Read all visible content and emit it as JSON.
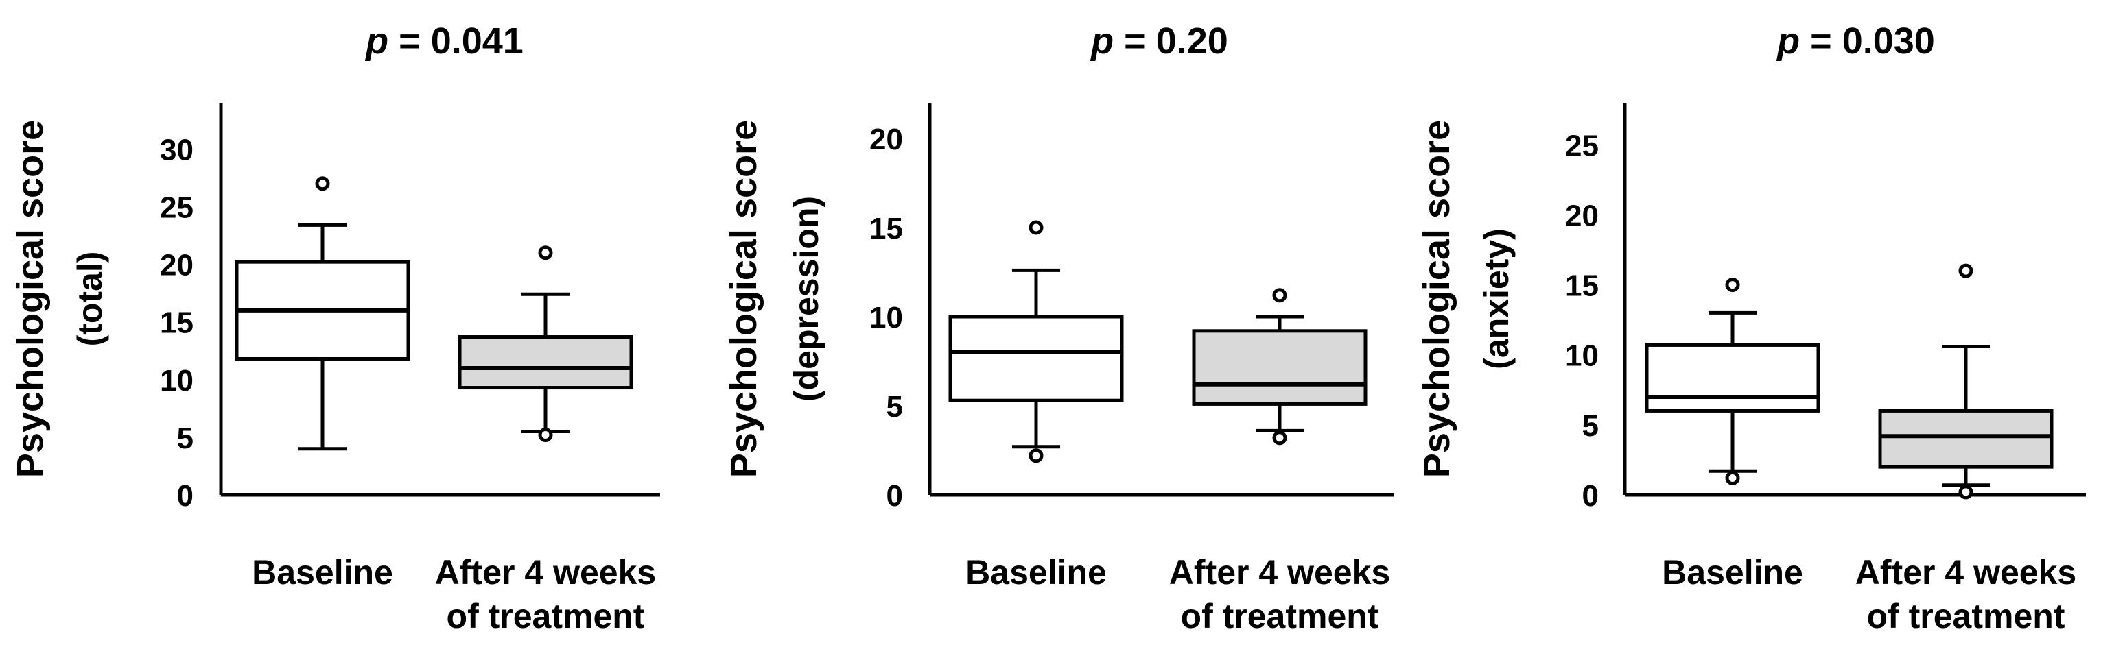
{
  "colors": {
    "axis": "#000000",
    "baseline_box": "#ffffff",
    "after_box": "#d9d9d9",
    "stroke": "#000000"
  },
  "chart_data": [
    {
      "type": "box",
      "p_prefix": "p",
      "p_value": " = 0.041",
      "ylabel_line1": "Psychological score",
      "ylabel_line2": "(total)",
      "yticks": [
        0,
        5,
        10,
        15,
        20,
        25,
        30
      ],
      "ylim": [
        0,
        34
      ],
      "categories": [
        "Baseline",
        "After 4 weeks|of treatment"
      ],
      "boxes": [
        {
          "whisker_low": 4,
          "q1": 11.8,
          "median": 16,
          "q3": 20.2,
          "whisker_high": 23.4,
          "outliers": [
            27
          ]
        },
        {
          "whisker_low": 5.5,
          "q1": 9.3,
          "median": 11,
          "q3": 13.7,
          "whisker_high": 17.4,
          "outliers": [
            5.2,
            21
          ]
        }
      ]
    },
    {
      "type": "box",
      "p_prefix": "p",
      "p_value": " = 0.20",
      "ylabel_line1": "Psychological score",
      "ylabel_line2": "(depression)",
      "yticks": [
        0,
        5,
        10,
        15,
        20
      ],
      "ylim": [
        0,
        22
      ],
      "categories": [
        "Baseline",
        "After 4 weeks|of treatment"
      ],
      "boxes": [
        {
          "whisker_low": 2.7,
          "q1": 5.3,
          "median": 8,
          "q3": 10,
          "whisker_high": 12.6,
          "outliers": [
            2.2,
            15
          ]
        },
        {
          "whisker_low": 3.6,
          "q1": 5.1,
          "median": 6.2,
          "q3": 9.2,
          "whisker_high": 10,
          "outliers": [
            3.2,
            11.2
          ]
        }
      ]
    },
    {
      "type": "box",
      "p_prefix": "p",
      "p_value": " = 0.030",
      "ylabel_line1": "Psychological score",
      "ylabel_line2": "(anxiety)",
      "yticks": [
        0,
        5,
        10,
        15,
        20,
        25
      ],
      "ylim": [
        0,
        28
      ],
      "categories": [
        "Baseline",
        "After 4 weeks|of treatment"
      ],
      "boxes": [
        {
          "whisker_low": 1.7,
          "q1": 6,
          "median": 7,
          "q3": 10.7,
          "whisker_high": 13,
          "outliers": [
            1.2,
            15
          ]
        },
        {
          "whisker_low": 0.7,
          "q1": 2,
          "median": 4.2,
          "q3": 6,
          "whisker_high": 10.6,
          "outliers": [
            0.2,
            16
          ]
        }
      ]
    }
  ]
}
